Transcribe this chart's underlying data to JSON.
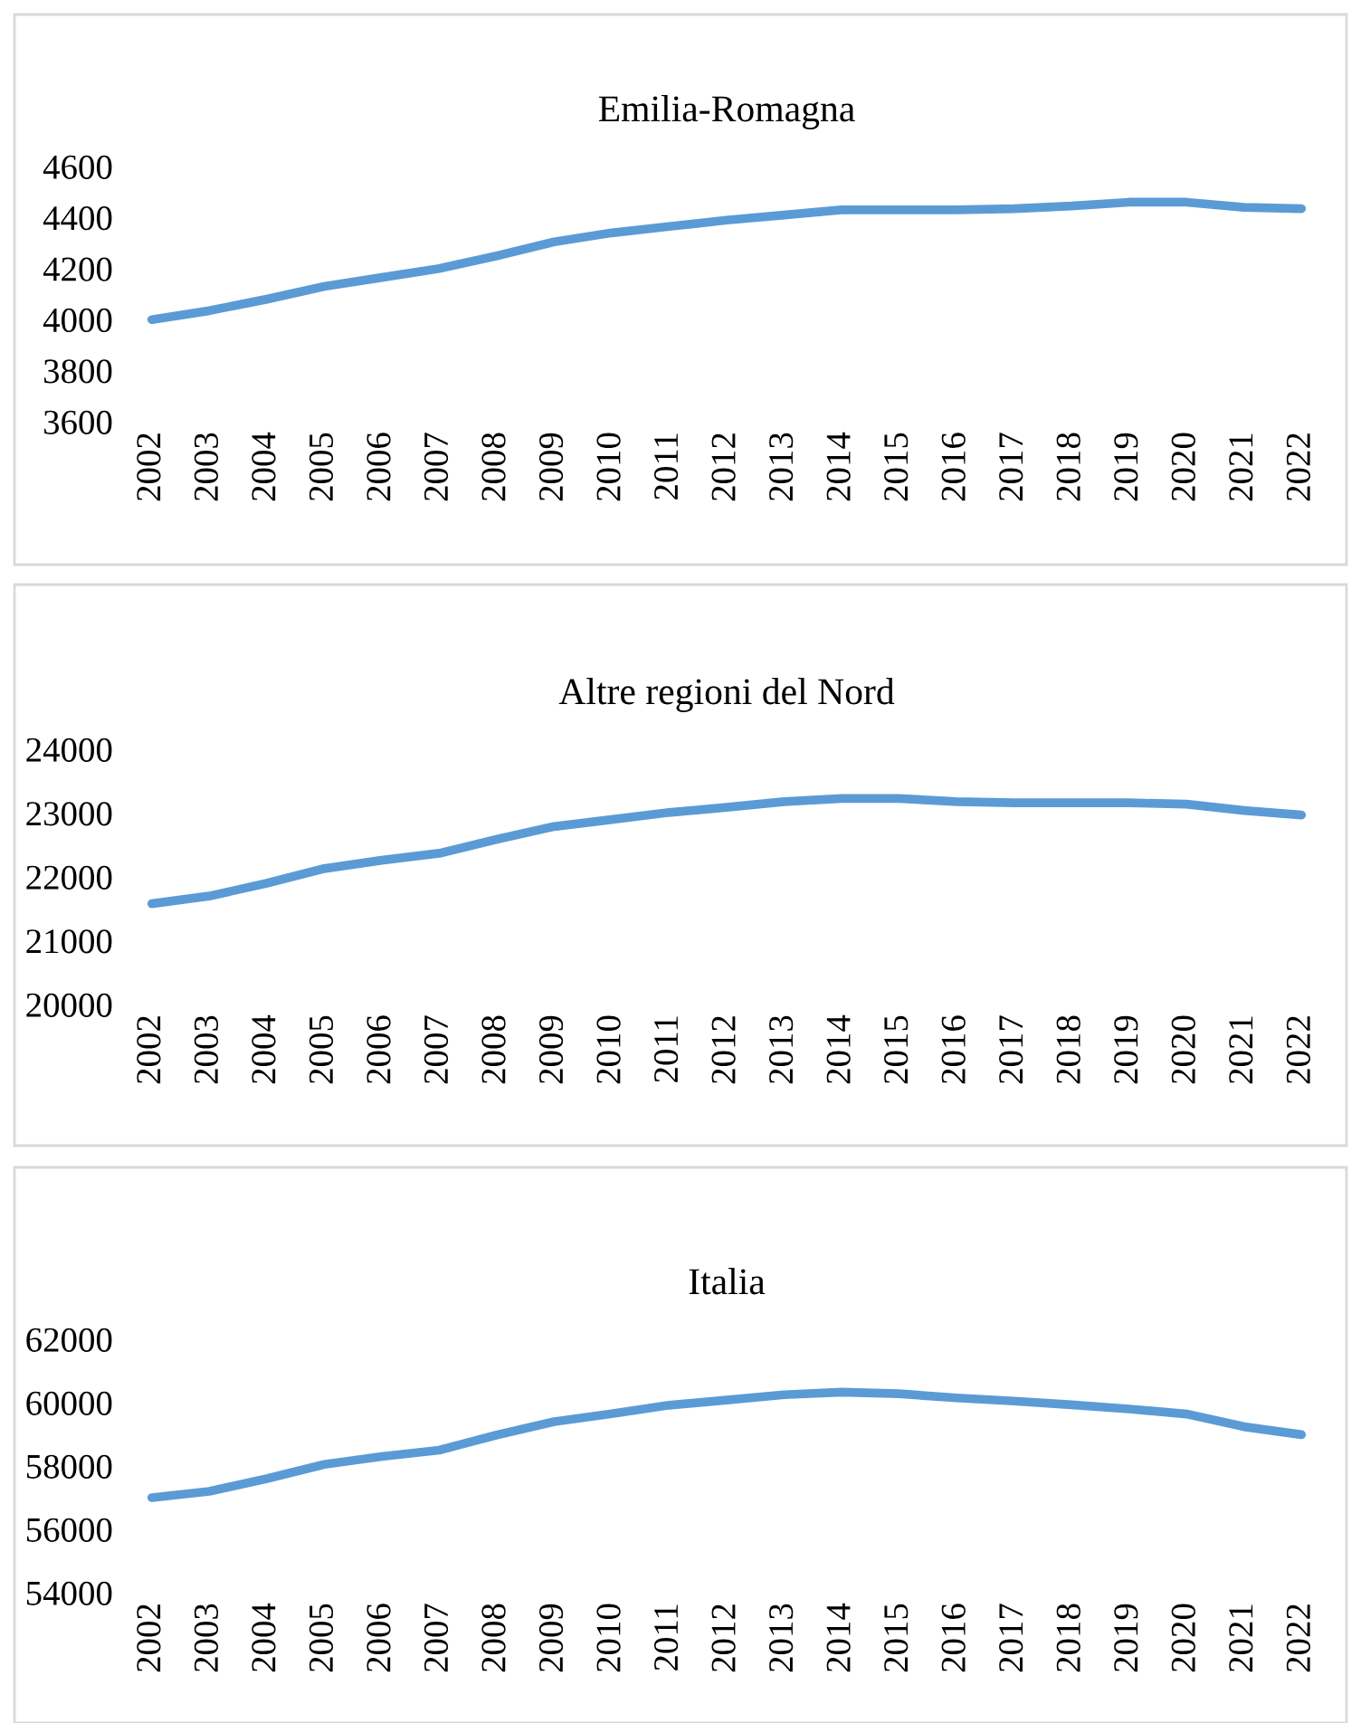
{
  "chart_data": [
    {
      "type": "line",
      "title": "Emilia-Romagna",
      "categories": [
        "2002",
        "2003",
        "2004",
        "2005",
        "2006",
        "2007",
        "2008",
        "2009",
        "2010",
        "2011",
        "2012",
        "2013",
        "2014",
        "2015",
        "2016",
        "2017",
        "2018",
        "2019",
        "2020",
        "2021",
        "2022"
      ],
      "series": [
        {
          "color": "#5b9bd5",
          "values": [
            4000,
            4035,
            4080,
            4130,
            4165,
            4200,
            4250,
            4305,
            4340,
            4365,
            4390,
            4410,
            4430,
            4430,
            4430,
            4435,
            4445,
            4460,
            4460,
            4440,
            4435
          ]
        }
      ],
      "ylim": [
        3600,
        4600
      ],
      "yticks": [
        3600,
        3800,
        4000,
        4200,
        4400,
        4600
      ],
      "grid": false,
      "marker": "none",
      "line_style": "solid"
    },
    {
      "type": "line",
      "title": "Altre regioni del Nord",
      "categories": [
        "2002",
        "2003",
        "2004",
        "2005",
        "2006",
        "2007",
        "2008",
        "2009",
        "2010",
        "2011",
        "2012",
        "2013",
        "2014",
        "2015",
        "2016",
        "2017",
        "2018",
        "2019",
        "2020",
        "2021",
        "2022"
      ],
      "series": [
        {
          "color": "#5b9bd5",
          "values": [
            21580,
            21700,
            21900,
            22130,
            22260,
            22370,
            22590,
            22790,
            22900,
            23010,
            23090,
            23180,
            23230,
            23230,
            23180,
            23160,
            23160,
            23160,
            23140,
            23040,
            22970
          ]
        }
      ],
      "ylim": [
        20000,
        24000
      ],
      "yticks": [
        20000,
        21000,
        22000,
        23000,
        24000
      ],
      "grid": false,
      "marker": "none",
      "line_style": "solid"
    },
    {
      "type": "line",
      "title": "Italia",
      "categories": [
        "2002",
        "2003",
        "2004",
        "2005",
        "2006",
        "2007",
        "2008",
        "2009",
        "2010",
        "2011",
        "2012",
        "2013",
        "2014",
        "2015",
        "2016",
        "2017",
        "2018",
        "2019",
        "2020",
        "2021",
        "2022"
      ],
      "series": [
        {
          "color": "#5b9bd5",
          "values": [
            57000,
            57200,
            57600,
            58050,
            58300,
            58500,
            58980,
            59400,
            59650,
            59920,
            60080,
            60250,
            60330,
            60280,
            60150,
            60050,
            59930,
            59800,
            59640,
            59240,
            58990
          ]
        }
      ],
      "ylim": [
        54000,
        62000
      ],
      "yticks": [
        54000,
        56000,
        58000,
        60000,
        62000
      ],
      "grid": false,
      "marker": "none",
      "line_style": "solid"
    }
  ]
}
